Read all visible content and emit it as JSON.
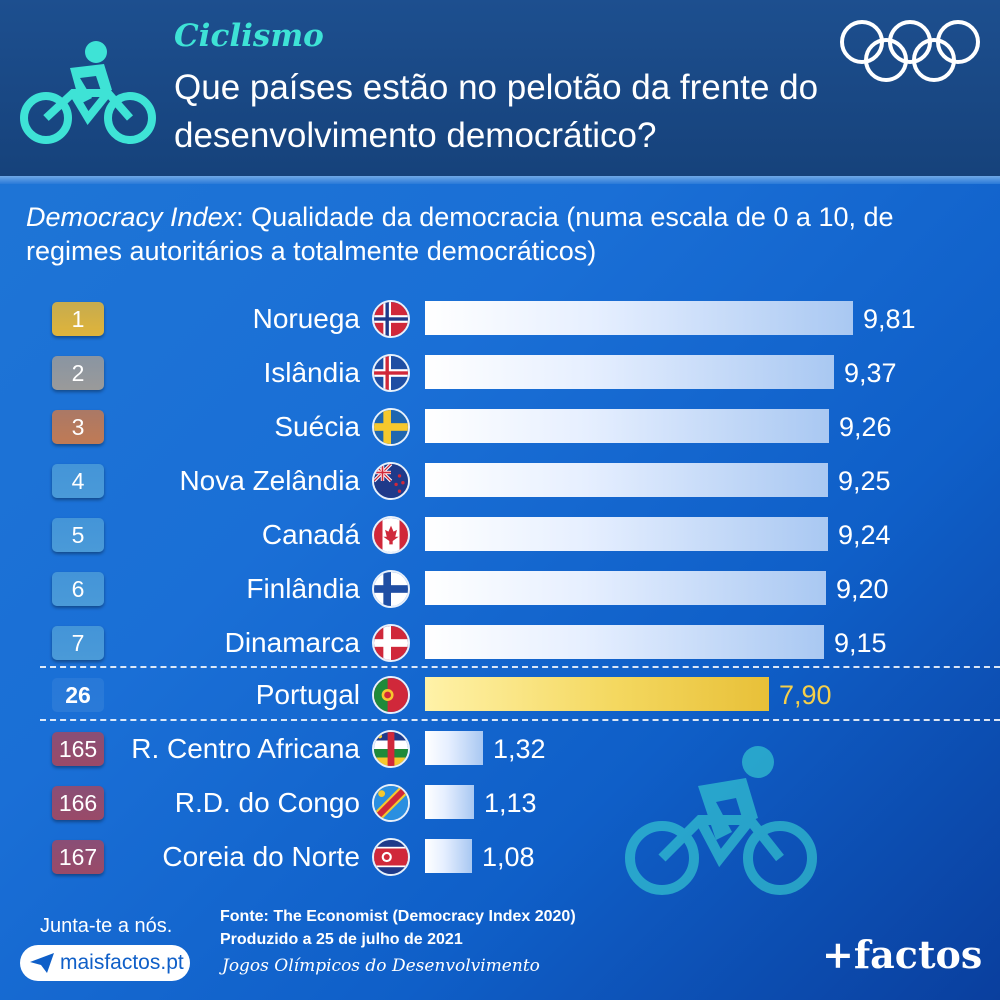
{
  "header": {
    "sport": "Ciclismo",
    "title": "Que países estão no pelotão da frente do desenvolvimento democrático?"
  },
  "subtitle": {
    "index_name": "Democracy Index",
    "text": ": Qualidade da democracia (numa escala de 0 a 10, de regimes autoritários a totalmente democráticos)"
  },
  "chart_data": {
    "type": "bar",
    "orientation": "horizontal",
    "title": "Democracy Index: Qualidade da democracia (numa escala de 0 a 10, de regimes autoritários a totalmente democráticos)",
    "xlim": [
      0,
      10
    ],
    "rows": [
      {
        "rank": "1",
        "country": "Noruega",
        "value": 9.81,
        "label": "9,81",
        "flag": "norway-flag-icon",
        "rank_color": "#e0b43a"
      },
      {
        "rank": "2",
        "country": "Islândia",
        "value": 9.37,
        "label": "9,37",
        "flag": "iceland-flag-icon",
        "rank_color": "#9a9a9a"
      },
      {
        "rank": "3",
        "country": "Suécia",
        "value": 9.26,
        "label": "9,26",
        "flag": "sweden-flag-icon",
        "rank_color": "#c07a55"
      },
      {
        "rank": "4",
        "country": "Nova Zelândia",
        "value": 9.25,
        "label": "9,25",
        "flag": "new-zealand-flag-icon",
        "rank_color": "#4a9ad8"
      },
      {
        "rank": "5",
        "country": "Canadá",
        "value": 9.24,
        "label": "9,24",
        "flag": "canada-flag-icon",
        "rank_color": "#4a9ad8"
      },
      {
        "rank": "6",
        "country": "Finlândia",
        "value": 9.2,
        "label": "9,20",
        "flag": "finland-flag-icon",
        "rank_color": "#4a9ad8"
      },
      {
        "rank": "7",
        "country": "Dinamarca",
        "value": 9.15,
        "label": "9,15",
        "flag": "denmark-flag-icon",
        "rank_color": "#4a9ad8"
      },
      {
        "rank": "26",
        "country": "Portugal",
        "value": 7.9,
        "label": "7,90",
        "flag": "portugal-flag-icon",
        "rank_color": "#2a7ad8",
        "highlight": true
      },
      {
        "rank": "165",
        "country": "R. Centro Africana",
        "value": 1.32,
        "label": "1,32",
        "flag": "central-african-republic-flag-icon",
        "rank_color": "#9a4a68"
      },
      {
        "rank": "166",
        "country": "R.D. do Congo",
        "value": 1.13,
        "label": "1,13",
        "flag": "dr-congo-flag-icon",
        "rank_color": "#9a4a68"
      },
      {
        "rank": "167",
        "country": "Coreia do Norte",
        "value": 1.08,
        "label": "1,08",
        "flag": "north-korea-flag-icon",
        "rank_color": "#9a4a68"
      }
    ]
  },
  "footer": {
    "join": "Junta-te a nós.",
    "site": "maisfactos.pt",
    "source": "Fonte: The Economist (Democracy Index 2020)",
    "produced": "Produzido a 25 de julho de 2021",
    "games": "Jogos Olímpicos do Desenvolvimento",
    "brand": "+factos"
  },
  "colors": {
    "accent": "#3ee3d6",
    "highlight": "#f5cf4a",
    "background": "#1a6fd6"
  }
}
